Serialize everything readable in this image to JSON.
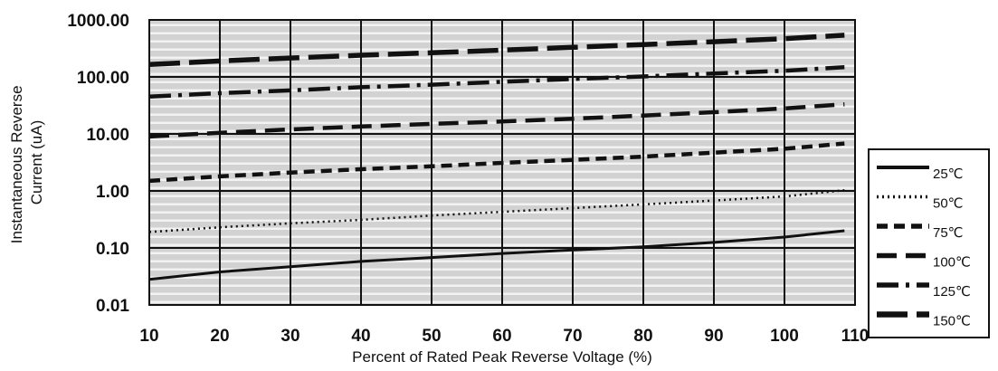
{
  "chart_data": {
    "type": "line",
    "title": "",
    "xlabel": "Percent of  Rated Peak Reverse Voltage (%)",
    "ylabel_lines": [
      "Instantaneous Reverse",
      "Current (uA)"
    ],
    "xlim": [
      10,
      110
    ],
    "ylim": [
      0.01,
      1000
    ],
    "y_scale": "log",
    "x_ticks": [
      "10",
      "20",
      "30",
      "40",
      "50",
      "60",
      "70",
      "80",
      "90",
      "100",
      "110"
    ],
    "y_ticks": [
      "1000.00",
      "100.00",
      "10.00",
      "1.00",
      "0.10",
      "0.01"
    ],
    "grid": true,
    "legend_position": "right",
    "x": [
      10,
      20,
      30,
      40,
      50,
      60,
      70,
      80,
      90,
      100,
      110
    ],
    "series": [
      {
        "name": "25℃",
        "style": "solid",
        "values": [
          0.028,
          0.038,
          0.047,
          0.058,
          0.068,
          0.08,
          0.092,
          0.105,
          0.125,
          0.155,
          0.2
        ]
      },
      {
        "name": "50℃",
        "style": "dotted",
        "values": [
          0.19,
          0.23,
          0.27,
          0.31,
          0.37,
          0.43,
          0.5,
          0.58,
          0.68,
          0.8,
          1.03
        ]
      },
      {
        "name": "75℃",
        "style": "short-dash",
        "values": [
          1.5,
          1.8,
          2.1,
          2.4,
          2.7,
          3.1,
          3.5,
          4.0,
          4.7,
          5.5,
          6.8
        ]
      },
      {
        "name": "100℃",
        "style": "dash",
        "values": [
          9.0,
          10.5,
          12,
          13.5,
          15,
          16.5,
          18.5,
          21,
          24,
          28,
          33
        ]
      },
      {
        "name": "125℃",
        "style": "dash-dot",
        "values": [
          45,
          52,
          58,
          66,
          73,
          82,
          92,
          102,
          115,
          128,
          148
        ]
      },
      {
        "name": "150℃",
        "style": "long-dash",
        "values": [
          165,
          190,
          215,
          240,
          265,
          295,
          330,
          370,
          415,
          470,
          540
        ]
      }
    ]
  }
}
